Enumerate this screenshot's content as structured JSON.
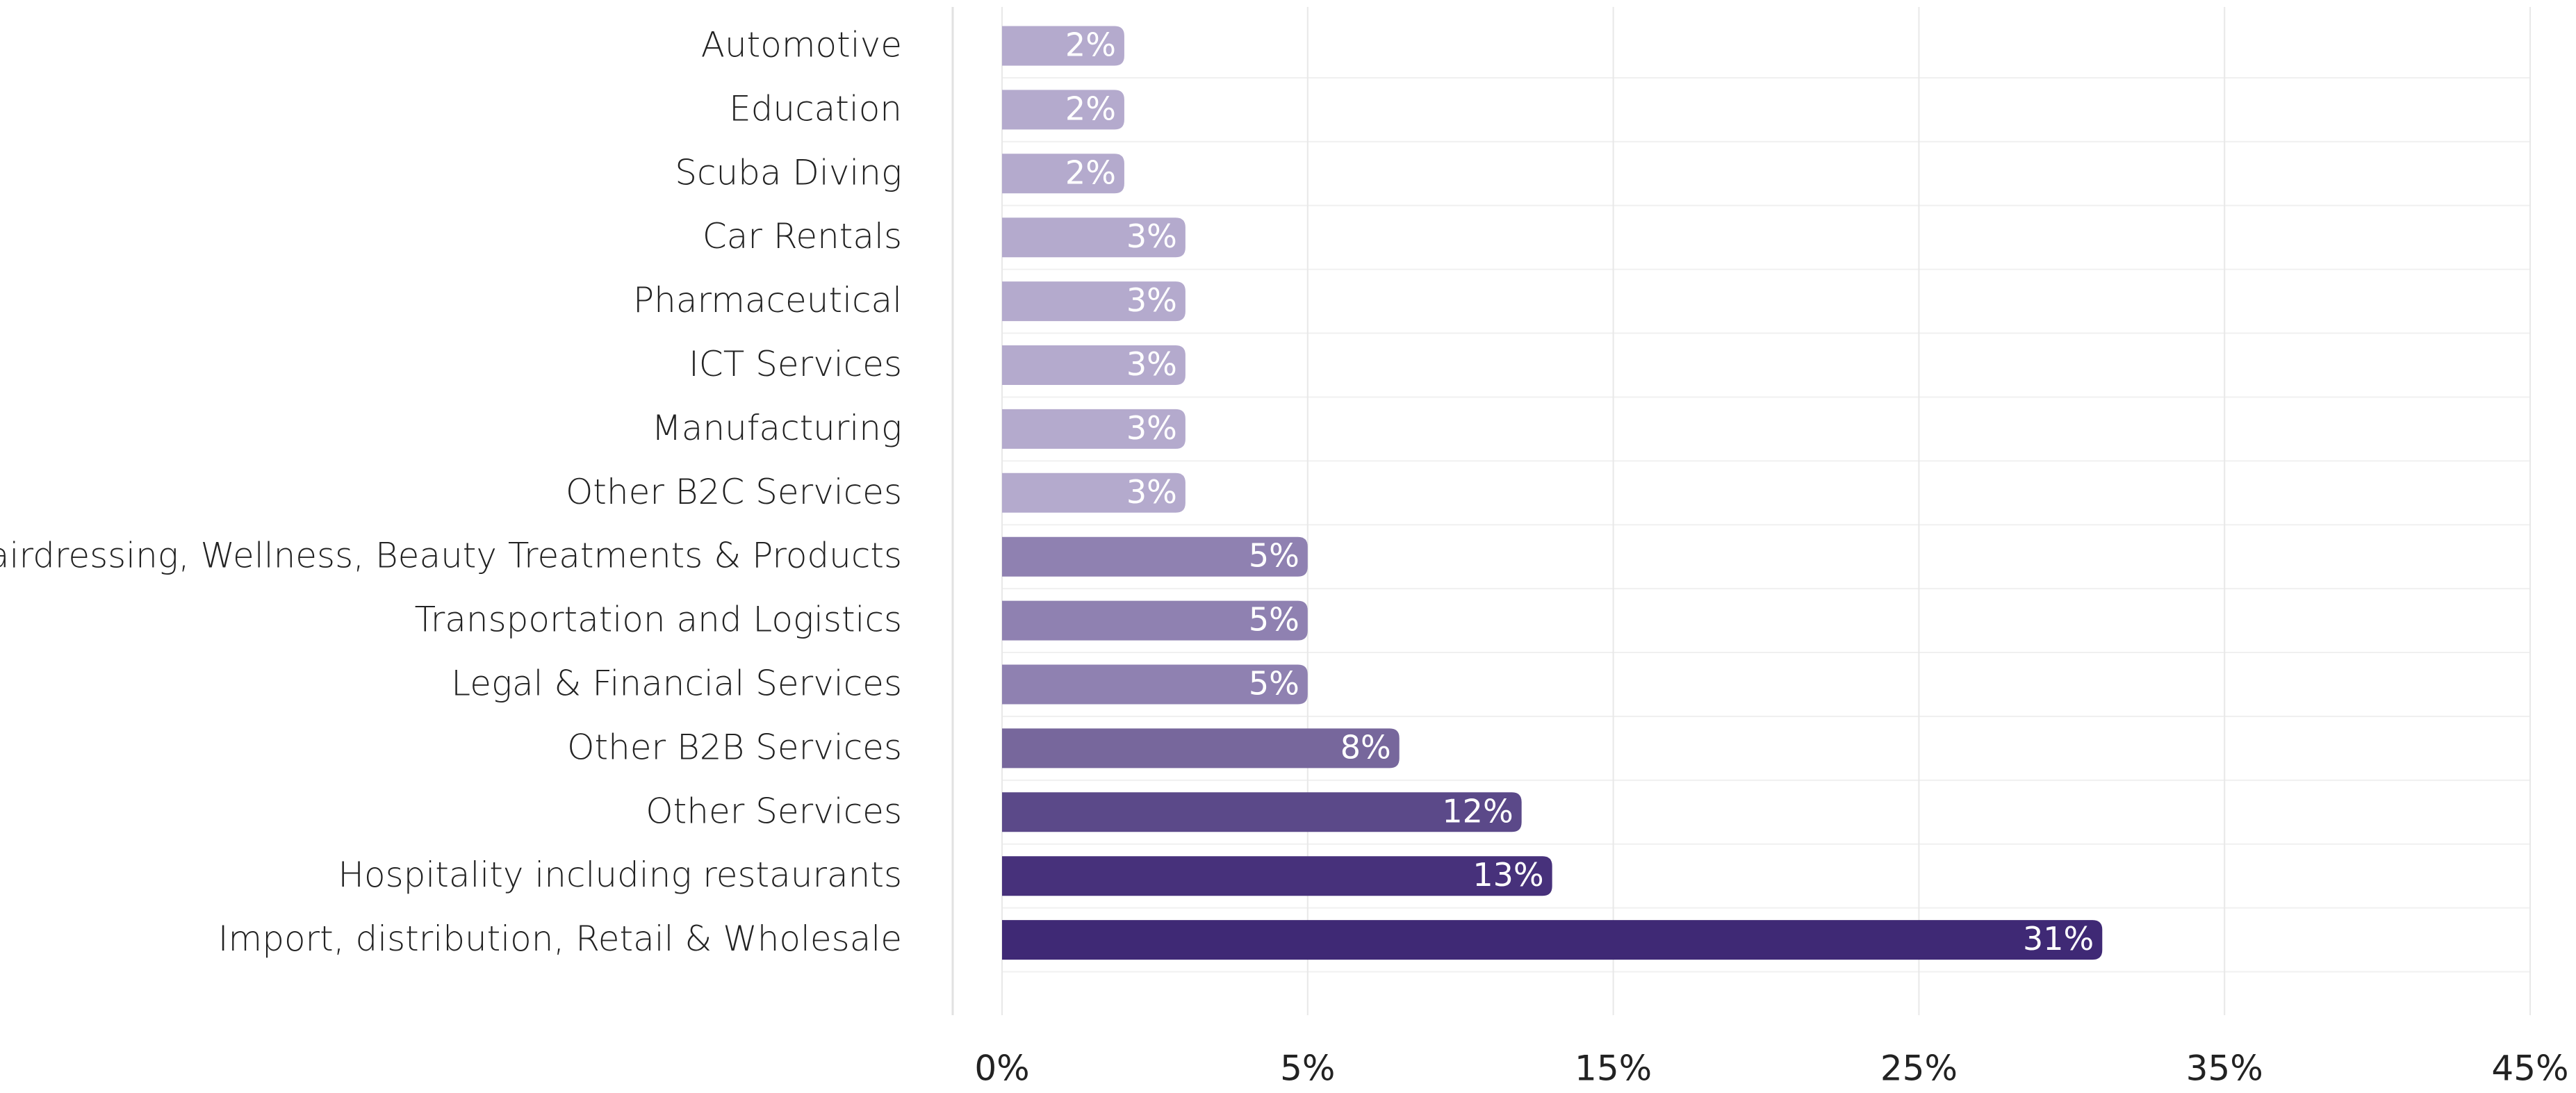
{
  "chart_data": {
    "type": "bar",
    "orientation": "horizontal",
    "categories": [
      "Automotive",
      "Education",
      "Scuba Diving",
      "Car Rentals",
      "Pharmaceutical",
      "ICT Services",
      "Manufacturing",
      "Other B2C Services",
      "Hairdressing, Wellness, Beauty Treatments & Products",
      "Transportation and Logistics",
      "Legal & Financial Services",
      "Other B2B Services",
      "Other Services",
      "Hospitality including restaurants",
      "Import, distribution, Retail & Wholesale"
    ],
    "values": [
      2,
      2,
      2,
      3,
      3,
      3,
      3,
      3,
      5,
      5,
      5,
      8,
      12,
      13,
      31
    ],
    "value_labels": [
      "2%",
      "2%",
      "2%",
      "3%",
      "3%",
      "3%",
      "3%",
      "3%",
      "5%",
      "5%",
      "5%",
      "8%",
      "12%",
      "13%",
      "31%"
    ],
    "colors": [
      "#b4aacd",
      "#b4aacd",
      "#b4aacd",
      "#b4aacd",
      "#b4aacd",
      "#b4aacd",
      "#b4aacd",
      "#b4aacd",
      "#8f81b1",
      "#8f81b1",
      "#8f81b1",
      "#77679c",
      "#5b4989",
      "#47317b",
      "#3f2975"
    ],
    "xlim": [
      0,
      45
    ],
    "xticks": [
      {
        "value": 0,
        "label": "0%"
      },
      {
        "value": 5,
        "label": "5%"
      },
      {
        "value": 15,
        "label": "15%"
      },
      {
        "value": 25,
        "label": "25%"
      },
      {
        "value": 35,
        "label": "35%"
      },
      {
        "value": 45,
        "label": "45%"
      }
    ],
    "grid": true
  }
}
